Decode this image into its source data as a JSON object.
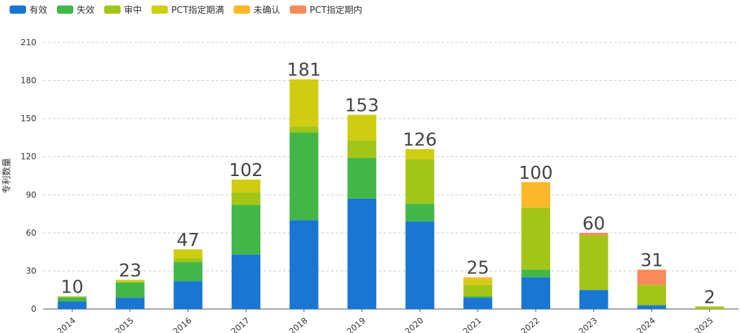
{
  "chart_data": {
    "type": "bar",
    "stacked": true,
    "ylabel": "专利数量",
    "xlabel": "",
    "ylim": [
      0,
      210
    ],
    "yticks": [
      0,
      30,
      60,
      90,
      120,
      150,
      180,
      210
    ],
    "categories": [
      "2014",
      "2015",
      "2016",
      "2017",
      "2018",
      "2019",
      "2020",
      "2021",
      "2022",
      "2023",
      "2024",
      "2025"
    ],
    "totals": [
      10,
      23,
      47,
      102,
      181,
      153,
      126,
      25,
      100,
      60,
      31,
      2
    ],
    "series": [
      {
        "name": "有效",
        "color": "#1976d2",
        "values": [
          6,
          9,
          22,
          43,
          70,
          87,
          69,
          9,
          25,
          15,
          3,
          0
        ]
      },
      {
        "name": "失效",
        "color": "#43b649",
        "values": [
          3,
          12,
          15,
          39,
          69,
          32,
          14,
          1,
          6,
          0,
          0,
          0
        ]
      },
      {
        "name": "审中",
        "color": "#a3c517",
        "values": [
          1,
          0,
          3,
          10,
          5,
          14,
          35,
          9,
          49,
          43,
          16,
          2
        ]
      },
      {
        "name": "PCT指定期满",
        "color": "#cfcd12",
        "values": [
          0,
          2,
          7,
          10,
          37,
          20,
          8,
          4,
          0,
          0,
          0,
          0
        ]
      },
      {
        "name": "未确认",
        "color": "#fbb829",
        "values": [
          0,
          0,
          0,
          0,
          0,
          0,
          0,
          2,
          20,
          0,
          0,
          0
        ]
      },
      {
        "name": "PCT指定期内",
        "color": "#fb8a5a",
        "values": [
          0,
          0,
          0,
          0,
          0,
          0,
          0,
          0,
          0,
          2,
          12,
          0
        ]
      }
    ]
  }
}
